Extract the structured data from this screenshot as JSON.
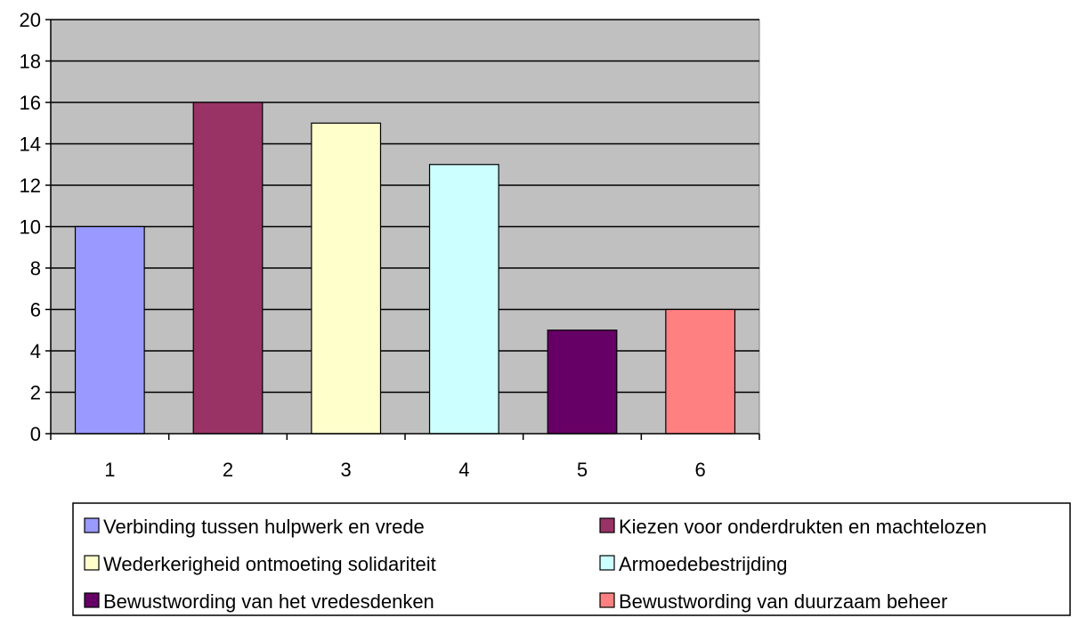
{
  "chart_data": {
    "type": "bar",
    "categories": [
      "1",
      "2",
      "3",
      "4",
      "5",
      "6"
    ],
    "values": [
      10,
      16,
      15,
      13,
      5,
      6
    ],
    "colors": [
      "#9999ff",
      "#993366",
      "#ffffcc",
      "#ccffff",
      "#660066",
      "#ff8080"
    ],
    "plot_background": "#c0c0c0",
    "ylim": [
      0,
      20
    ],
    "yticks": [
      0,
      2,
      4,
      6,
      8,
      10,
      12,
      14,
      16,
      18,
      20
    ],
    "grid": true,
    "legend": {
      "placement": "bottom",
      "entries": [
        "Verbinding tussen hulpwerk en vrede",
        "Kiezen voor onderdrukten en machtelozen",
        "Wederkerigheid ontmoeting solidariteit",
        "Armoedebestrijding",
        "Bewustwording van het vredesdenken",
        "Bewustwording van duurzaam beheer"
      ]
    }
  }
}
